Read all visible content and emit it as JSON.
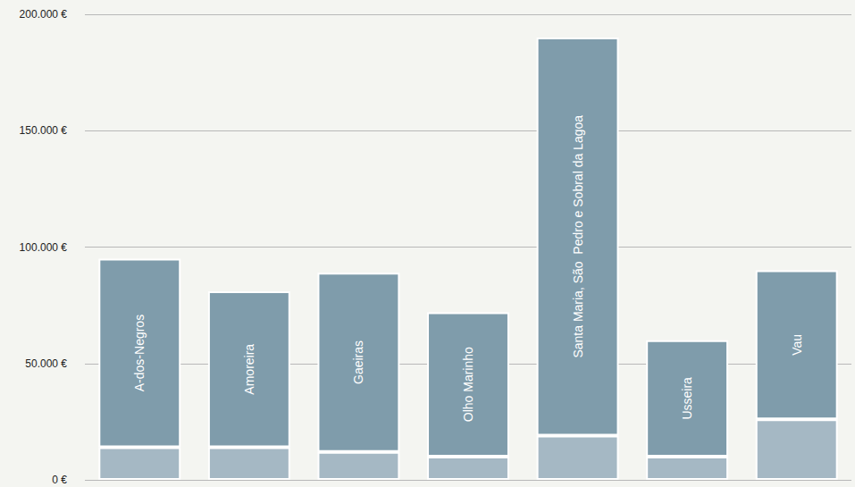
{
  "chart_data": {
    "type": "bar",
    "stacked": true,
    "categories": [
      "A-dos-Negros",
      "Amoreira",
      "Gaeiras",
      "Olho Marinho",
      "Santa Maria, São  Pedro e Sobral da Lagoa",
      "Usseira",
      "Vau"
    ],
    "series": [
      {
        "color": "#a5b8c4",
        "values": [
          14000,
          14000,
          12000,
          10000,
          19000,
          10000,
          26000
        ]
      },
      {
        "color": "#7f9cab",
        "values": [
          81000,
          67000,
          77000,
          62000,
          171000,
          50000,
          64000
        ]
      }
    ],
    "ylim": [
      0,
      200000
    ],
    "yticks": [
      {
        "value": 0,
        "label": "0 €"
      },
      {
        "value": 50000,
        "label": "50.000 €"
      },
      {
        "value": 100000,
        "label": "100.000 €"
      },
      {
        "value": 150000,
        "label": "150.000 €"
      },
      {
        "value": 200000,
        "label": "200.000 €"
      }
    ],
    "grid": true,
    "tick_labels": "y"
  }
}
